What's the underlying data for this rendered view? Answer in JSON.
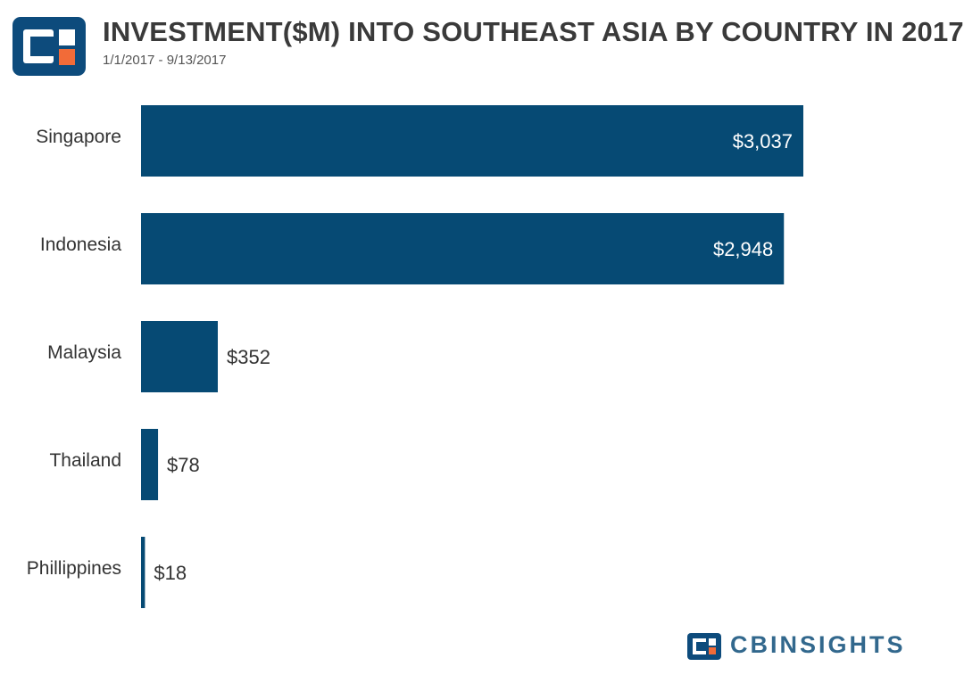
{
  "header": {
    "title": "INVESTMENT($M) INTO SOUTHEAST ASIA BY COUNTRY IN 2017",
    "subtitle": "1/1/2017 - 9/13/2017"
  },
  "footer": {
    "brand_text": "CBINSIGHTS"
  },
  "colors": {
    "bar": "#064a74",
    "logo_blue": "#0d4b7c",
    "logo_orange": "#f26b38",
    "label_inside": "#ffffff",
    "label_outside": "#333333"
  },
  "chart_data": {
    "type": "bar",
    "orientation": "horizontal",
    "title": "INVESTMENT($M) INTO SOUTHEAST ASIA BY COUNTRY IN 2017",
    "subtitle": "1/1/2017 - 9/13/2017",
    "categories": [
      "Singapore",
      "Indonesia",
      "Malaysia",
      "Thailand",
      "Phillippines"
    ],
    "values": [
      3037,
      2948,
      352,
      78,
      18
    ],
    "data_labels": [
      "$3,037",
      "$2,948",
      "$352",
      "$78",
      "$18"
    ],
    "xlim": [
      0,
      3037
    ],
    "grid": false,
    "legend": "none"
  }
}
